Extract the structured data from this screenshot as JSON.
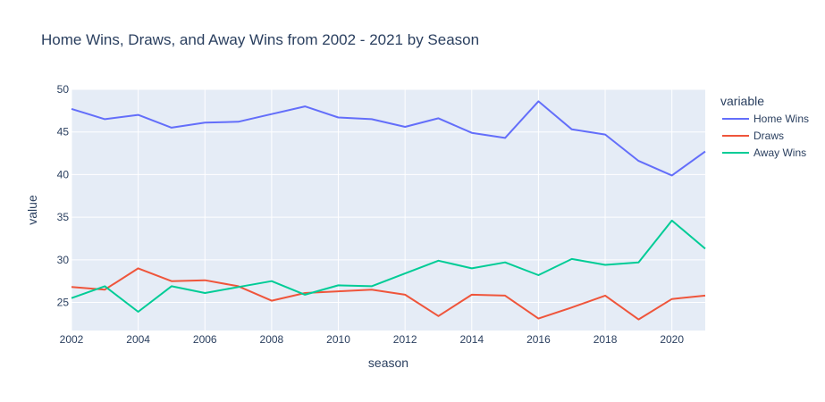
{
  "chart_data": {
    "type": "line",
    "title": "Home Wins, Draws, and Away Wins from 2002 - 2021 by Season",
    "xlabel": "season",
    "ylabel": "value",
    "xlim": [
      2002,
      2021
    ],
    "ylim": [
      21.7,
      50
    ],
    "xticks": [
      2002,
      2004,
      2006,
      2008,
      2010,
      2012,
      2014,
      2016,
      2018,
      2020
    ],
    "yticks": [
      25,
      30,
      35,
      40,
      45,
      50
    ],
    "grid": true,
    "legend": {
      "title": "variable",
      "placement": "right"
    },
    "x": [
      2002,
      2003,
      2004,
      2005,
      2006,
      2007,
      2008,
      2009,
      2010,
      2011,
      2012,
      2013,
      2014,
      2015,
      2016,
      2017,
      2018,
      2019,
      2020,
      2021
    ],
    "series": [
      {
        "name": "Home Wins",
        "color": "#636efa",
        "values": [
          47.7,
          46.5,
          47.0,
          45.5,
          46.1,
          46.2,
          47.1,
          48.0,
          46.7,
          46.5,
          45.6,
          46.6,
          44.9,
          44.3,
          48.6,
          45.3,
          44.7,
          41.6,
          39.9,
          42.7
        ]
      },
      {
        "name": "Draws",
        "color": "#ef553b",
        "values": [
          26.8,
          26.5,
          29.0,
          27.5,
          27.6,
          26.9,
          25.2,
          26.1,
          26.3,
          26.5,
          25.9,
          23.4,
          25.9,
          25.8,
          23.1,
          24.4,
          25.8,
          23.0,
          25.4,
          25.8
        ]
      },
      {
        "name": "Away Wins",
        "color": "#00cc96",
        "values": [
          25.5,
          26.9,
          23.9,
          26.9,
          26.1,
          26.8,
          27.5,
          25.9,
          27.0,
          26.9,
          28.4,
          29.9,
          29.0,
          29.7,
          28.2,
          30.1,
          29.4,
          29.7,
          34.6,
          31.3
        ]
      }
    ]
  }
}
